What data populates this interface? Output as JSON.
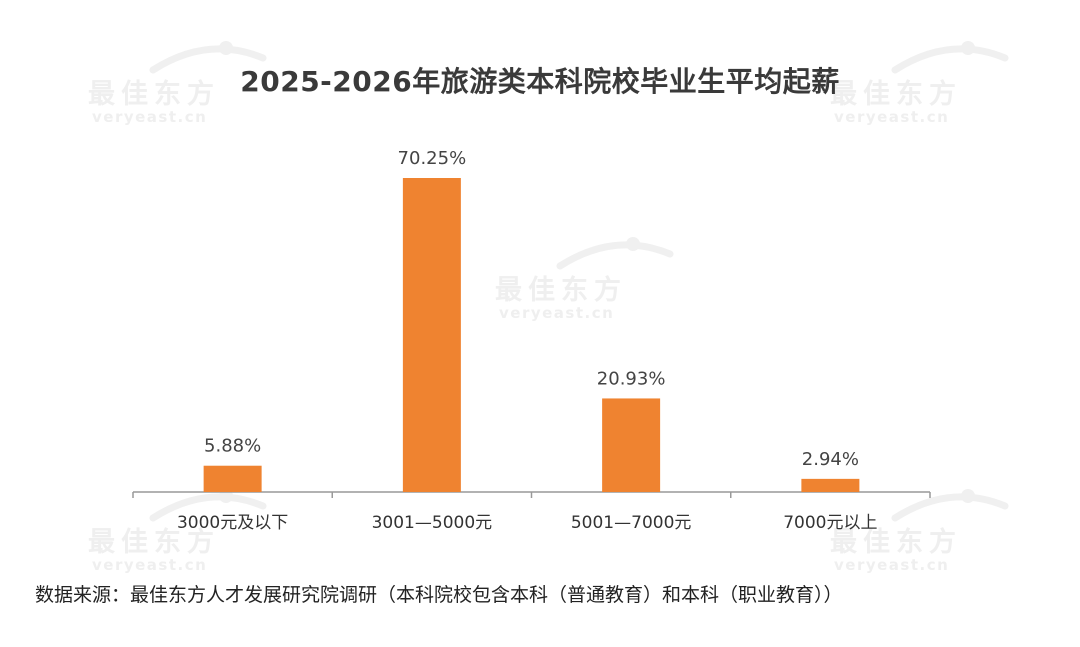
{
  "watermark": {
    "brand_cn": "最佳东方",
    "brand_en": "veryeast.cn"
  },
  "chart_data": {
    "type": "bar",
    "title": "2025-2026年旅游类本科院校毕业生平均起薪",
    "categories": [
      "3000元及以下",
      "3001—5000元",
      "5001—7000元",
      "7000元以上"
    ],
    "values": [
      5.88,
      70.25,
      20.93,
      2.94
    ],
    "value_labels": [
      "5.88%",
      "70.25%",
      "20.93%",
      "2.94%"
    ],
    "ylim": [
      0,
      70.25
    ],
    "grid": false,
    "bar_color": "#ef8330",
    "axis_color": "#999999"
  },
  "source": "数据来源：最佳东方人才发展研究院调研（本科院校包含本科（普通教育）和本科（职业教育））"
}
